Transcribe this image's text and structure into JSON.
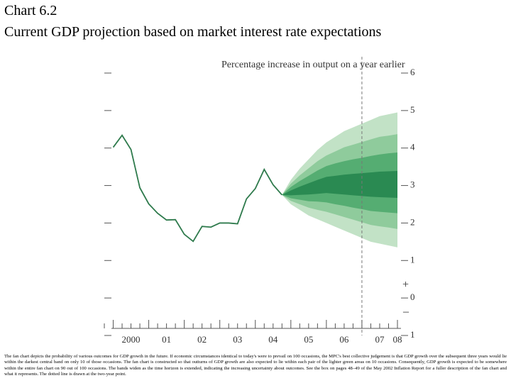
{
  "chart_data": {
    "type": "fan",
    "title": "Chart 6.2",
    "subtitle": "Current GDP projection based on market interest rate expectations",
    "y_axis_label": "Percentage increase in output on a year earlier",
    "axis_signs": [
      "+",
      "–"
    ],
    "footnote": "The fan chart depicts the probability of various outcomes for GDP growth in the future. If economic circumstances identical to today's were to prevail on 100 occasions, the MPC's best collective judgement is that GDP growth over the subsequent three years would lie within the darkest central band on only 10 of those occasions. The fan chart is constructed so that outturns of GDP growth are also expected to lie within each pair of the lighter green areas on 10 occasions. Consequently, GDP growth is expected to be somewhere within the entire fan chart on 90 out of 100 occasions. The bands widen as the time horizon is extended, indicating the increasing uncertainty about outcomes. See the box on pages 48–49 of the May 2002 Inflation Report for a fuller description of the fan chart and what it represents. The dotted line is drawn at the two-year point.",
    "xlim": [
      1999.75,
      2008.1
    ],
    "ylim": [
      -1,
      6
    ],
    "xticks": [
      {
        "value": 2000.5,
        "label": "2000"
      },
      {
        "value": 2001.5,
        "label": "01"
      },
      {
        "value": 2002.5,
        "label": "02"
      },
      {
        "value": 2003.5,
        "label": "03"
      },
      {
        "value": 2004.5,
        "label": "04"
      },
      {
        "value": 2005.5,
        "label": "05"
      },
      {
        "value": 2006.5,
        "label": "06"
      },
      {
        "value": 2007.5,
        "label": "07"
      },
      {
        "value": 2008.0,
        "label": "08"
      }
    ],
    "yticks": [
      {
        "value": -1,
        "label": "1"
      },
      0,
      1,
      2,
      3,
      4,
      5,
      6
    ],
    "dashed_line_x": 2007.0,
    "line_color": "#2e7a4c",
    "x": [
      2000,
      2000.25,
      2000.5,
      2000.75,
      2001,
      2001.25,
      2001.5,
      2001.75,
      2002,
      2002.25,
      2002.5,
      2002.75,
      2003,
      2003.25,
      2003.5,
      2003.75,
      2004,
      2004.25,
      2004.5,
      2004.75
    ],
    "values": [
      4.02,
      4.34,
      3.96,
      2.94,
      2.51,
      2.26,
      2.08,
      2.09,
      1.7,
      1.51,
      1.91,
      1.89,
      2.0,
      2.0,
      1.98,
      2.64,
      2.92,
      3.43,
      3.02,
      2.75
    ],
    "fan_x": [
      2004.75,
      2005,
      2005.25,
      2005.5,
      2005.75,
      2006,
      2006.25,
      2006.5,
      2006.75,
      2007,
      2007.25,
      2007.5,
      2007.75,
      2008
    ],
    "bands": [
      {
        "color": "#c2e2c6",
        "upper": [
          2.75,
          3.15,
          3.45,
          3.7,
          3.95,
          4.15,
          4.3,
          4.45,
          4.55,
          4.65,
          4.75,
          4.85,
          4.9,
          4.95
        ],
        "lower": [
          2.75,
          2.5,
          2.35,
          2.2,
          2.1,
          2.0,
          1.9,
          1.8,
          1.7,
          1.6,
          1.5,
          1.45,
          1.4,
          1.35
        ]
      },
      {
        "color": "#8fcb9c",
        "upper": [
          2.75,
          3.05,
          3.27,
          3.46,
          3.65,
          3.8,
          3.91,
          4.02,
          4.09,
          4.16,
          4.23,
          4.3,
          4.33,
          4.37
        ],
        "lower": [
          2.75,
          2.59,
          2.5,
          2.41,
          2.35,
          2.3,
          2.23,
          2.16,
          2.09,
          2.02,
          1.95,
          1.91,
          1.88,
          1.84
        ]
      },
      {
        "color": "#55ad72",
        "upper": [
          2.75,
          2.96,
          3.12,
          3.26,
          3.4,
          3.52,
          3.59,
          3.65,
          3.7,
          3.74,
          3.79,
          3.83,
          3.86,
          3.88
        ],
        "lower": [
          2.75,
          2.66,
          2.62,
          2.58,
          2.57,
          2.55,
          2.5,
          2.46,
          2.41,
          2.37,
          2.32,
          2.3,
          2.28,
          2.26
        ]
      },
      {
        "color": "#2a8a52",
        "upper": [
          2.75,
          2.87,
          2.97,
          3.06,
          3.15,
          3.23,
          3.26,
          3.29,
          3.31,
          3.33,
          3.35,
          3.37,
          3.38,
          3.39
        ],
        "lower": [
          2.75,
          2.74,
          2.75,
          2.76,
          2.78,
          2.8,
          2.78,
          2.76,
          2.74,
          2.72,
          2.7,
          2.69,
          2.68,
          2.67
        ]
      }
    ]
  }
}
